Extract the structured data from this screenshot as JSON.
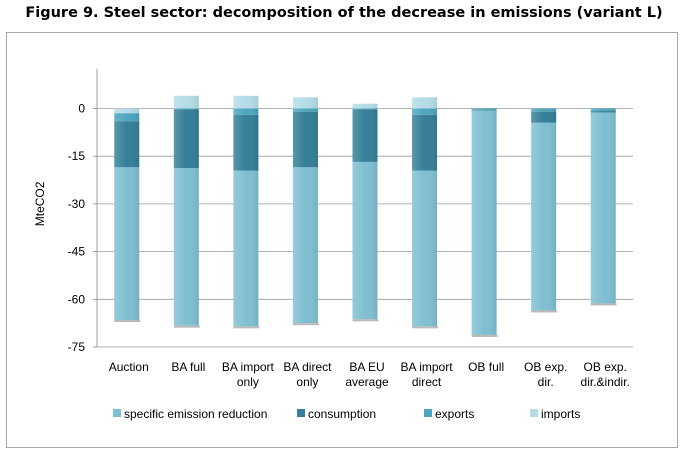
{
  "title": "Figure 9. Steel sector: decomposition of the decrease in emissions (variant L)",
  "chart_data": {
    "type": "bar",
    "stacked": true,
    "ylabel": "MteCO2",
    "xlabel": "",
    "ylim": [
      -75,
      10
    ],
    "yticks": [
      0,
      -15,
      -30,
      -45,
      -60,
      -75
    ],
    "grid": true,
    "legend_position": "bottom",
    "categories": [
      [
        "Auction"
      ],
      [
        "BA full"
      ],
      [
        "BA import",
        "only"
      ],
      [
        "BA direct",
        "only"
      ],
      [
        "BA EU",
        "average"
      ],
      [
        "BA import",
        "direct"
      ],
      [
        "OB full"
      ],
      [
        "OB exp.",
        "dir."
      ],
      [
        "OB exp.",
        "dir.&indir."
      ]
    ],
    "series": [
      {
        "name": "specific emission reduction",
        "color": "#7fbfd2",
        "values": [
          -48.0,
          -49.5,
          -49.0,
          -49.0,
          -49.5,
          -49.0,
          -70.5,
          -59.0,
          -60.0
        ]
      },
      {
        "name": "consumption",
        "color": "#357f98",
        "values": [
          -14.5,
          -18.5,
          -17.5,
          -17.5,
          -16.5,
          -17.5,
          -0.2,
          -3.5,
          -0.5
        ]
      },
      {
        "name": "exports",
        "color": "#4da5be",
        "values": [
          -2.5,
          -0.3,
          -2.0,
          -1.0,
          -0.3,
          -2.0,
          -0.5,
          -1.0,
          -0.8
        ]
      },
      {
        "name": "imports",
        "color": "#b4dce6",
        "values": [
          -1.5,
          4.0,
          4.0,
          3.5,
          1.5,
          3.5,
          0,
          0,
          0
        ]
      }
    ]
  }
}
